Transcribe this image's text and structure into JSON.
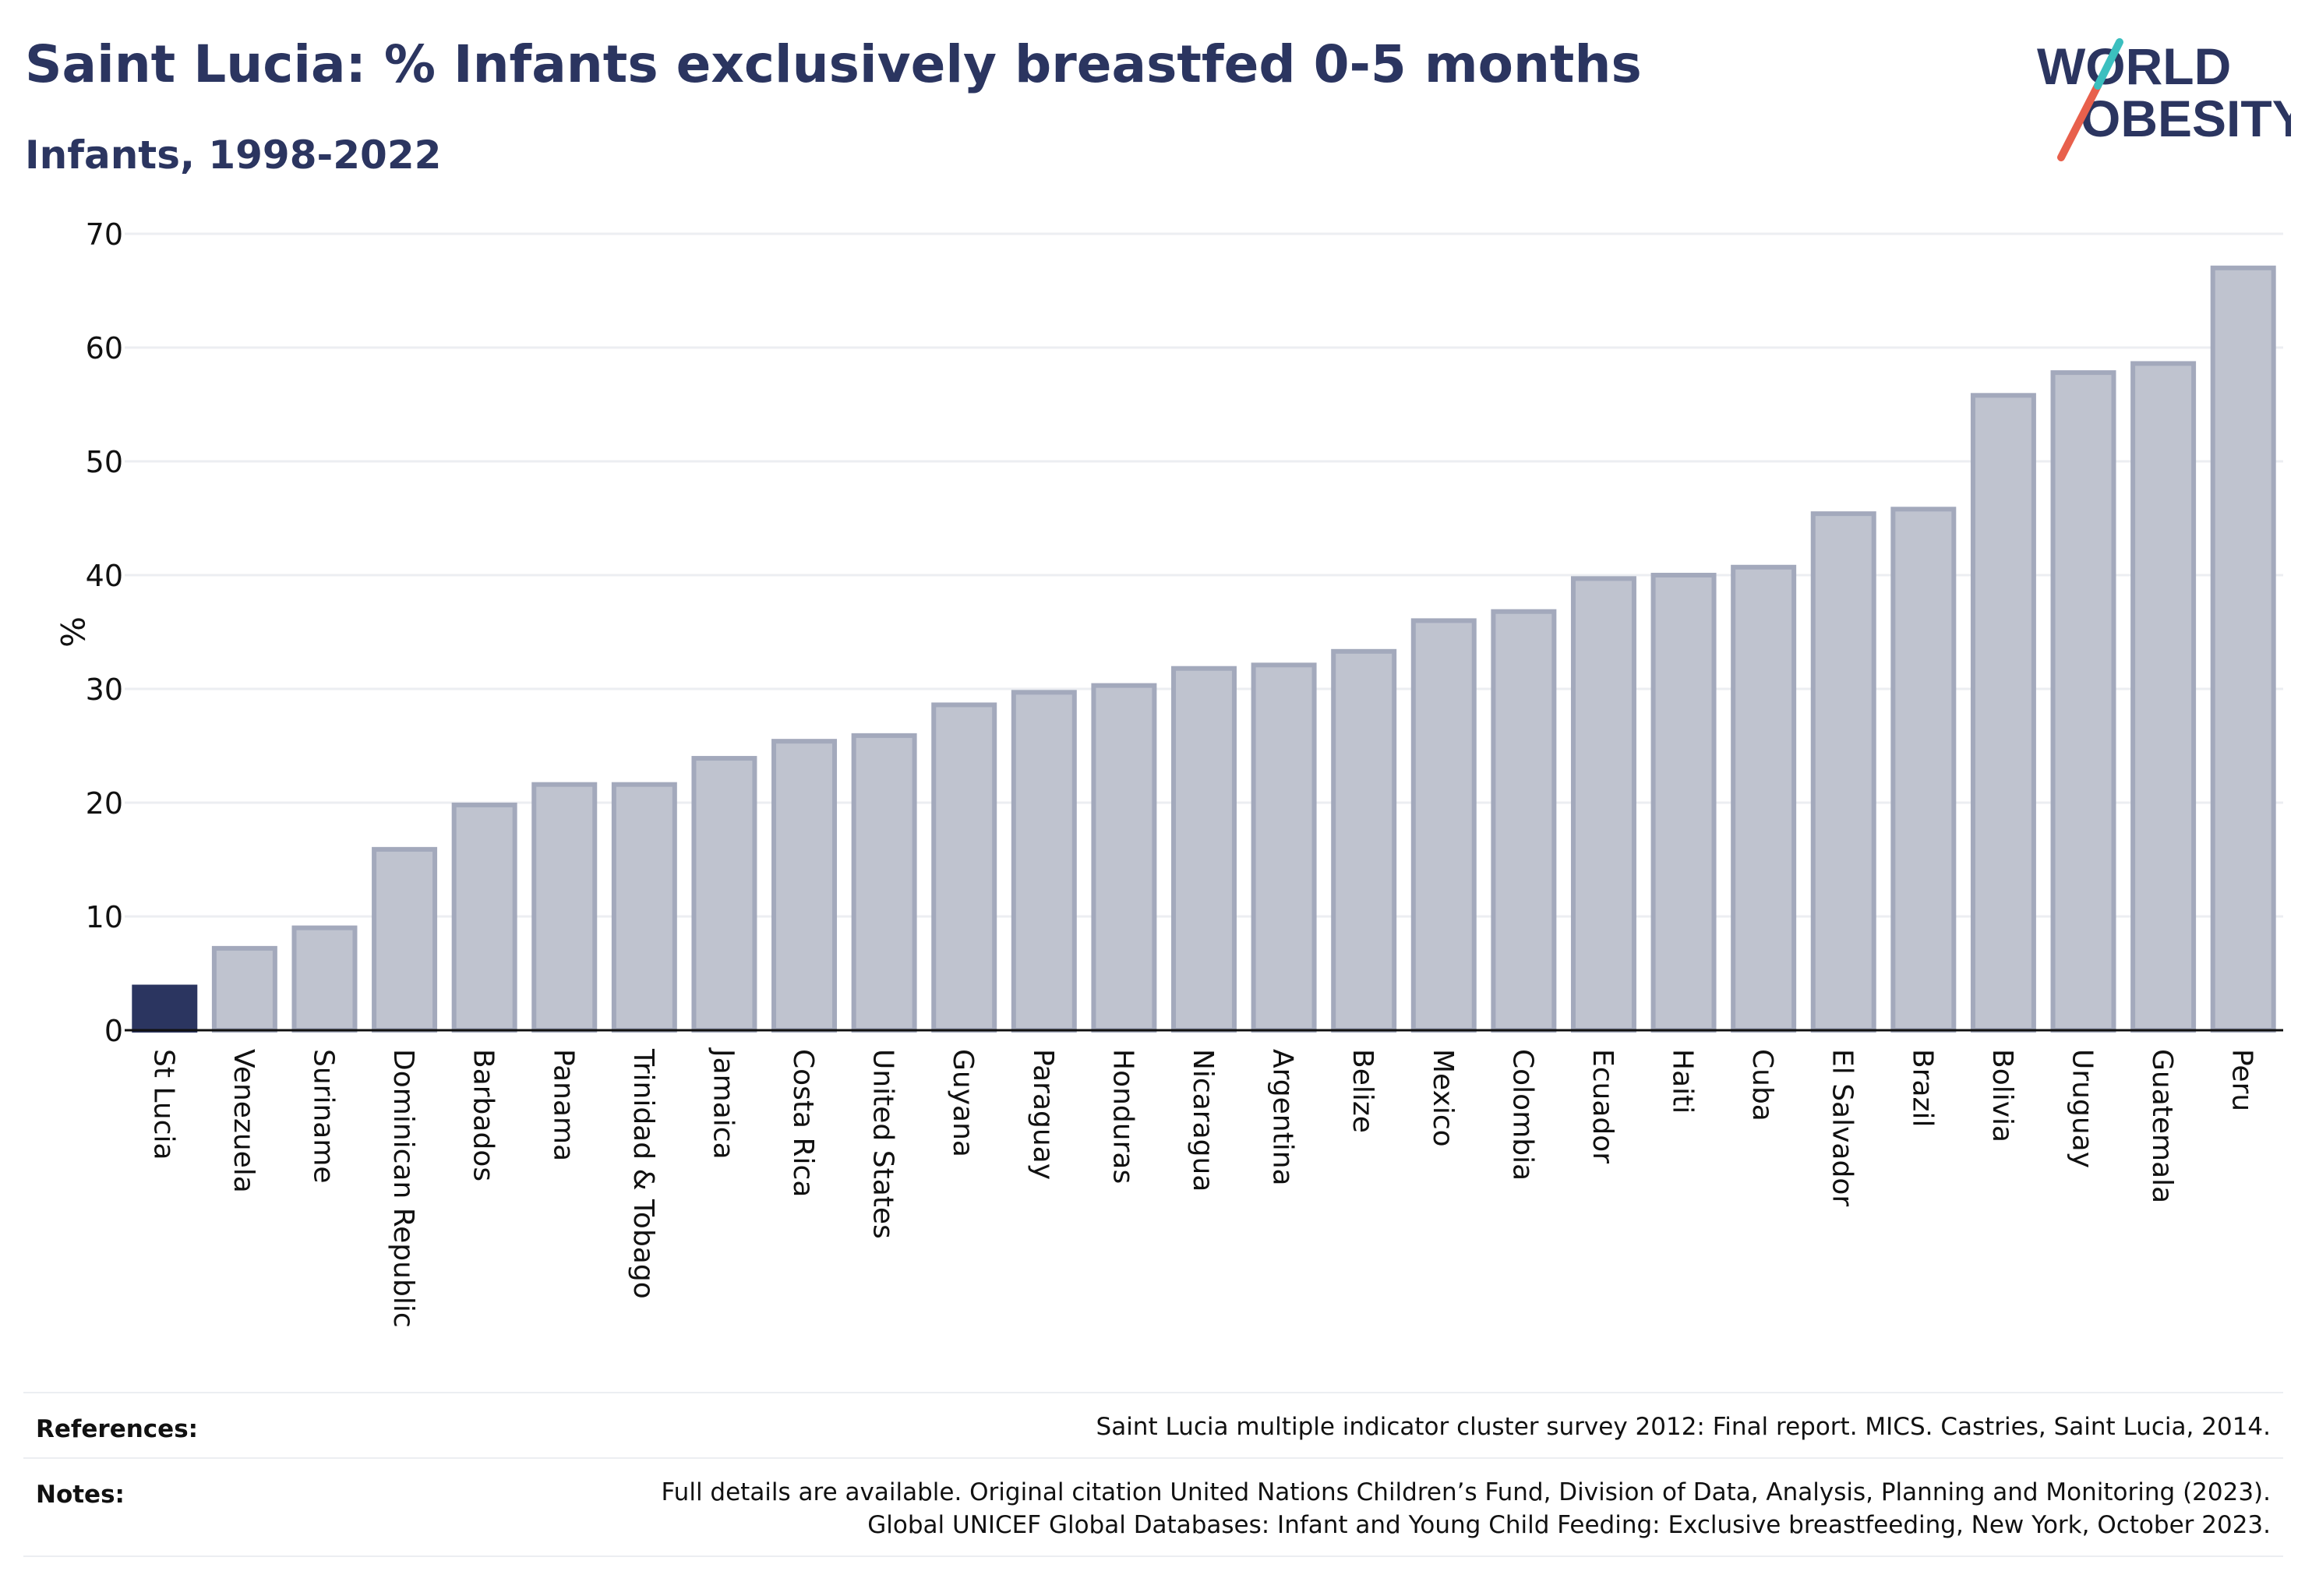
{
  "header": {
    "title": "Saint Lucia: % Infants exclusively breastfed 0-5 months",
    "subtitle": "Infants, 1998-2022"
  },
  "logo": {
    "line1": "WORLD",
    "line2": "OBESITY"
  },
  "colors": {
    "highlight": "#2b3560",
    "bar": "#bfc3cf",
    "bar_stroke": "#a3a9bc",
    "text": "#2b3560",
    "grid": "#eceef2"
  },
  "chart_data": {
    "type": "bar",
    "title": "Saint Lucia: % Infants exclusively breastfed 0-5 months",
    "subtitle": "Infants, 1998-2022",
    "ylabel": "%",
    "ylim": [
      0,
      70
    ],
    "yticks": [
      0,
      10,
      20,
      30,
      40,
      50,
      60,
      70
    ],
    "grid": true,
    "highlight_category": "St Lucia",
    "categories": [
      "St Lucia",
      "Venezuela",
      "Suriname",
      "Dominican Republic",
      "Barbados",
      "Panama",
      "Trinidad & Tobago",
      "Jamaica",
      "Costa Rica",
      "United States",
      "Guyana",
      "Paraguay",
      "Honduras",
      "Nicaragua",
      "Argentina",
      "Belize",
      "Mexico",
      "Colombia",
      "Ecuador",
      "Haiti",
      "Cuba",
      "El Salvador",
      "Brazil",
      "Bolivia",
      "Uruguay",
      "Guatemala",
      "Peru"
    ],
    "values": [
      3.8,
      7.2,
      9.0,
      15.9,
      19.8,
      21.6,
      21.6,
      23.9,
      25.4,
      25.9,
      28.6,
      29.7,
      30.3,
      31.8,
      32.1,
      33.3,
      36.0,
      36.8,
      39.7,
      40.0,
      40.7,
      45.4,
      45.8,
      55.8,
      57.8,
      58.6,
      67.0
    ]
  },
  "footer": {
    "references_label": "References:",
    "references_text": "Saint Lucia multiple indicator cluster survey 2012: Final report. MICS. Castries, Saint Lucia, 2014.",
    "notes_label": "Notes:",
    "notes_line1": "Full details are available. Original citation United Nations Children’s Fund, Division of Data, Analysis, Planning and Monitoring (2023).",
    "notes_line2": "Global UNICEF Global Databases: Infant and Young Child Feeding: Exclusive breastfeeding, New York, October 2023."
  }
}
